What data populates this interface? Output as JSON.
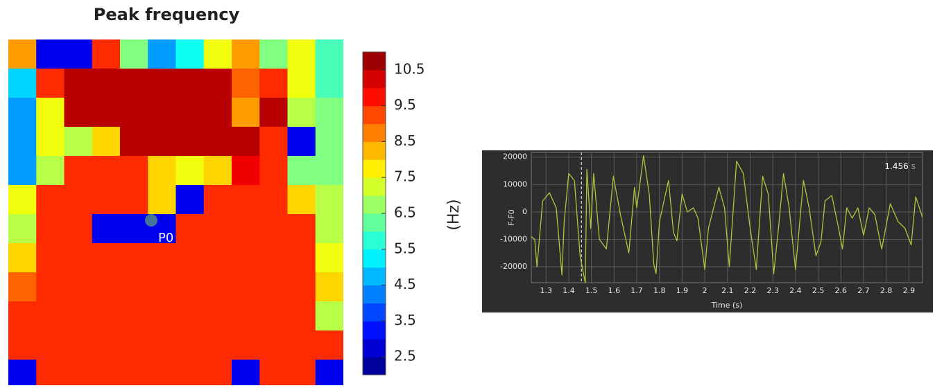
{
  "chart_data": [
    {
      "type": "heatmap",
      "title": "Peak frequency",
      "colorbar_label": "(Hz)",
      "annotation": "P0",
      "zlim": [
        2,
        11
      ],
      "colorbar_ticks": [
        2.5,
        3.5,
        4.5,
        5.5,
        6.5,
        7.5,
        8.5,
        9.5,
        10.5
      ],
      "values": [
        [
          8.5,
          3,
          3,
          9.5,
          6.5,
          4.5,
          5.5,
          7.5,
          8.5,
          6.5,
          7.5,
          6
        ],
        [
          5,
          9.5,
          10.5,
          10.5,
          10.5,
          10.5,
          10.5,
          10.5,
          9,
          9.5,
          7.5,
          6
        ],
        [
          4.5,
          7.5,
          10.5,
          10.5,
          10.5,
          10.5,
          10.5,
          10.5,
          8.5,
          10.5,
          7,
          6.5
        ],
        [
          4.5,
          7.5,
          7,
          8,
          10.5,
          10.5,
          10.5,
          10.5,
          10.5,
          9.5,
          3,
          6.5
        ],
        [
          4.5,
          7,
          9.5,
          9.5,
          9.5,
          8,
          7.5,
          8,
          10,
          9.5,
          6.5,
          6.5
        ],
        [
          7.5,
          9.5,
          9.5,
          9.5,
          9.5,
          8,
          3,
          9.5,
          9.5,
          9.5,
          8,
          7
        ],
        [
          7,
          9.5,
          9.5,
          3,
          3,
          3,
          9.5,
          9.5,
          9.5,
          9.5,
          9.5,
          7
        ],
        [
          8,
          9.5,
          9.5,
          9.5,
          9.5,
          9.5,
          9.5,
          9.5,
          9.5,
          9.5,
          9.5,
          7.5
        ],
        [
          9,
          9.5,
          9.5,
          9.5,
          9.5,
          9.5,
          9.5,
          9.5,
          9.5,
          9.5,
          9.5,
          8
        ],
        [
          9.5,
          9.5,
          9.5,
          9.5,
          9.5,
          9.5,
          9.5,
          9.5,
          9.5,
          9.5,
          9.5,
          7
        ],
        [
          9.5,
          9.5,
          9.5,
          9.5,
          9.5,
          9.5,
          9.5,
          9.5,
          9.5,
          9.5,
          9.5,
          9.5
        ],
        [
          3,
          9.5,
          9.5,
          9.5,
          9.5,
          9.5,
          9.5,
          9.5,
          3,
          9.5,
          9.5,
          3
        ]
      ]
    },
    {
      "type": "line",
      "xlabel": "Time (s)",
      "ylabel": "F-F0",
      "color": "#a9c93c",
      "grid": true,
      "xlim": [
        1.235,
        2.96
      ],
      "ylim": [
        -25800,
        21700
      ],
      "xticks": [
        1.3,
        1.4,
        1.5,
        1.6,
        1.7,
        1.8,
        1.9,
        2,
        2.1,
        2.2,
        2.3,
        2.4,
        2.5,
        2.6,
        2.7,
        2.8,
        2.9
      ],
      "yticks": [
        -20000,
        -10000,
        0,
        10000,
        20000
      ],
      "cursor": {
        "value": 1.456,
        "label": "1.456",
        "unit": "s"
      },
      "x": [
        1.235,
        1.25,
        1.26,
        1.285,
        1.315,
        1.345,
        1.37,
        1.38,
        1.4,
        1.425,
        1.45,
        1.473,
        1.48,
        1.497,
        1.51,
        1.535,
        1.566,
        1.597,
        1.628,
        1.665,
        1.69,
        1.7,
        1.73,
        1.755,
        1.775,
        1.785,
        1.8,
        1.84,
        1.862,
        1.877,
        1.9,
        1.923,
        1.95,
        1.97,
        2.0,
        2.016,
        2.062,
        2.087,
        2.108,
        2.14,
        2.17,
        2.2,
        2.227,
        2.255,
        2.28,
        2.304,
        2.326,
        2.347,
        2.372,
        2.4,
        2.435,
        2.46,
        2.49,
        2.512,
        2.53,
        2.56,
        2.59,
        2.607,
        2.626,
        2.65,
        2.675,
        2.7,
        2.725,
        2.75,
        2.78,
        2.818,
        2.852,
        2.883,
        2.91,
        2.93,
        2.96
      ],
      "values": [
        -9000,
        -10000,
        -20000,
        4000,
        7000,
        1500,
        -23000,
        -3500,
        14000,
        11500,
        -16000,
        -26000,
        15500,
        -6000,
        14000,
        -10000,
        -13500,
        13000,
        -1000,
        -15000,
        9000,
        1500,
        20500,
        6500,
        -19000,
        -22500,
        -3500,
        11500,
        -7500,
        -10500,
        6500,
        0,
        1500,
        -2300,
        -21000,
        -6000,
        9000,
        1500,
        -20000,
        18500,
        14000,
        -6000,
        -21000,
        13000,
        6500,
        -22500,
        -5000,
        14000,
        1500,
        -21000,
        11500,
        1500,
        -16000,
        -11000,
        4000,
        6000,
        -6000,
        -13500,
        1500,
        -2300,
        1500,
        -8500,
        1500,
        -1000,
        -13500,
        3000,
        -3500,
        -6000,
        -12000,
        5500,
        -2000
      ]
    }
  ]
}
